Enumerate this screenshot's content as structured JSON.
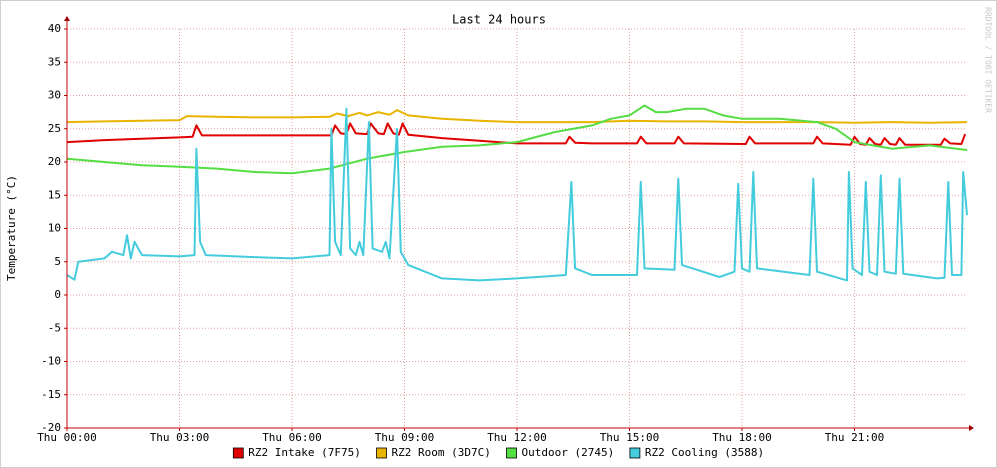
{
  "chart_data": {
    "type": "line",
    "title": "Last 24 hours",
    "y_label": "Temperature (°C)",
    "watermark": "RRDTOOL / TOBI OETIKER",
    "xlim": [
      0,
      24
    ],
    "xticks": [
      {
        "value": 0,
        "label": "Thu 00:00"
      },
      {
        "value": 3,
        "label": "Thu 03:00"
      },
      {
        "value": 6,
        "label": "Thu 06:00"
      },
      {
        "value": 9,
        "label": "Thu 09:00"
      },
      {
        "value": 12,
        "label": "Thu 12:00"
      },
      {
        "value": 15,
        "label": "Thu 15:00"
      },
      {
        "value": 18,
        "label": "Thu 18:00"
      },
      {
        "value": 21,
        "label": "Thu 21:00"
      }
    ],
    "ylim": [
      -20,
      40
    ],
    "yticks": [
      -20,
      -15,
      -10,
      -5,
      0,
      5,
      10,
      15,
      20,
      25,
      30,
      35,
      40
    ],
    "grid": true,
    "legend": "bottom",
    "series": [
      {
        "name": "RZ2 Intake (7F75)",
        "color": "#e00000",
        "x": [
          0,
          1,
          2,
          3,
          3.35,
          3.45,
          3.6,
          6,
          7.05,
          7.15,
          7.3,
          7.45,
          7.55,
          7.7,
          8,
          8.1,
          8.3,
          8.45,
          8.55,
          8.7,
          8.85,
          8.95,
          9.1,
          10,
          11,
          12,
          13.3,
          13.4,
          13.55,
          14,
          15.2,
          15.3,
          15.45,
          16.2,
          16.3,
          16.45,
          18.1,
          18.2,
          18.35,
          19.9,
          20,
          20.15,
          20.9,
          21,
          21.15,
          21.3,
          21.4,
          21.55,
          21.7,
          21.8,
          21.95,
          22.1,
          22.2,
          22.35,
          23.3,
          23.4,
          23.55,
          23.85,
          23.95
        ],
        "values": [
          23,
          23.3,
          23.5,
          23.7,
          23.8,
          25.5,
          24,
          24,
          24,
          25.5,
          24.3,
          24.2,
          25.8,
          24.3,
          24.2,
          25.8,
          24.3,
          24.2,
          25.8,
          24.3,
          24.1,
          25.8,
          24.1,
          23.6,
          23.2,
          22.8,
          22.8,
          23.8,
          22.9,
          22.8,
          22.8,
          23.8,
          22.8,
          22.8,
          23.8,
          22.8,
          22.7,
          23.8,
          22.8,
          22.8,
          23.8,
          22.8,
          22.6,
          23.8,
          22.7,
          22.6,
          23.6,
          22.7,
          22.6,
          23.6,
          22.7,
          22.6,
          23.6,
          22.6,
          22.6,
          23.5,
          22.8,
          22.7,
          24.2
        ]
      },
      {
        "name": "RZ2 Room (3D7C)",
        "color": "#e8b400",
        "x": [
          0,
          1,
          2,
          3,
          3.2,
          4,
          5,
          6,
          7,
          7.2,
          7.5,
          7.8,
          8,
          8.3,
          8.6,
          8.8,
          9.1,
          10,
          11,
          12,
          13,
          14,
          15,
          16,
          17,
          18,
          19,
          20,
          21,
          22,
          23,
          24
        ],
        "values": [
          26,
          26.1,
          26.2,
          26.3,
          26.9,
          26.8,
          26.7,
          26.7,
          26.8,
          27.3,
          26.9,
          27.4,
          27,
          27.5,
          27.1,
          27.8,
          27,
          26.5,
          26.2,
          26,
          26,
          26,
          26.2,
          26.1,
          26.1,
          26,
          26,
          26,
          25.9,
          26,
          25.9,
          26
        ]
      },
      {
        "name": "Outdoor (2745)",
        "color": "#55dd44",
        "x": [
          0,
          1,
          2,
          3,
          4,
          5,
          6,
          7,
          8,
          9,
          10,
          11,
          12,
          13,
          14,
          14.5,
          15,
          15.4,
          15.7,
          16,
          16.5,
          17,
          17.5,
          18,
          19,
          20,
          20.5,
          21,
          22,
          23,
          24
        ],
        "values": [
          20.5,
          20,
          19.5,
          19.3,
          19,
          18.5,
          18.3,
          19,
          20.5,
          21.5,
          22.3,
          22.5,
          23,
          24.5,
          25.5,
          26.5,
          27,
          28.5,
          27.5,
          27.5,
          28,
          28,
          27,
          26.5,
          26.5,
          26,
          25,
          23,
          22,
          22.5,
          21.8
        ]
      },
      {
        "name": "RZ2 Cooling (3588)",
        "color": "#44ccdd",
        "x": [
          0,
          0.2,
          0.3,
          1,
          1.2,
          1.5,
          1.6,
          1.7,
          1.8,
          2,
          3,
          3.4,
          3.45,
          3.55,
          3.7,
          5,
          6,
          7,
          7.05,
          7.15,
          7.3,
          7.45,
          7.55,
          7.7,
          7.8,
          7.9,
          8.05,
          8.15,
          8.4,
          8.5,
          8.6,
          8.8,
          8.9,
          9.1,
          10,
          11,
          12,
          13.3,
          13.45,
          13.55,
          14,
          15.2,
          15.3,
          15.4,
          16.2,
          16.3,
          16.4,
          17.4,
          17.8,
          17.9,
          18,
          18.2,
          18.3,
          18.4,
          19.8,
          19.9,
          20,
          20.8,
          20.85,
          20.95,
          21.2,
          21.3,
          21.4,
          21.6,
          21.7,
          21.8,
          22.1,
          22.2,
          22.3,
          23.2,
          23.4,
          23.5,
          23.6,
          23.85,
          23.9,
          24
        ],
        "values": [
          3,
          2.3,
          5,
          5.5,
          6.5,
          6,
          9,
          5.5,
          8,
          6,
          5.8,
          6,
          22,
          8,
          6,
          5.7,
          5.5,
          6,
          25,
          8,
          6,
          28,
          7,
          6,
          8,
          6,
          26,
          7,
          6.5,
          8,
          5.5,
          25,
          6.5,
          4.5,
          2.5,
          2.2,
          2.5,
          3,
          17,
          4,
          3,
          3,
          17,
          4,
          3.8,
          17.5,
          4.5,
          2.7,
          3.5,
          16.7,
          4,
          3.5,
          18.5,
          4,
          3,
          17.5,
          3.5,
          2.2,
          18.5,
          4,
          3,
          17,
          3.5,
          3,
          18,
          3.5,
          3.2,
          17.5,
          3.2,
          2.5,
          2.6,
          17,
          3,
          3,
          18.5,
          12
        ]
      }
    ]
  }
}
